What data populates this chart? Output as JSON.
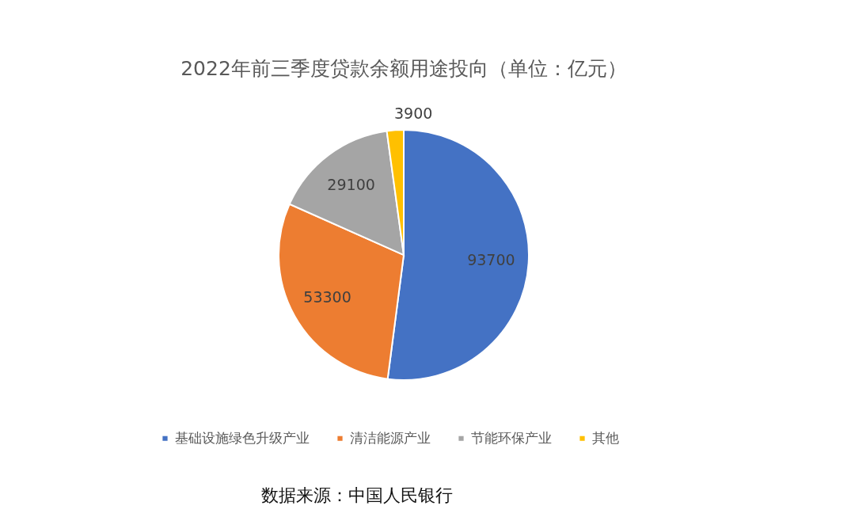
{
  "chart_data": {
    "type": "pie",
    "title": "2022年前三季度贷款余额用途投向（单位：亿元）",
    "categories": [
      "基础设施绿色升级产业",
      "清洁能源产业",
      "节能环保产业",
      "其他"
    ],
    "values": [
      93700,
      53300,
      29100,
      3900
    ],
    "colors": [
      "#4472c4",
      "#ed7d31",
      "#a5a5a5",
      "#ffc000"
    ],
    "data_labels": true,
    "legend": "bottom",
    "annotations": [
      "数据来源：中国人民银行"
    ]
  }
}
